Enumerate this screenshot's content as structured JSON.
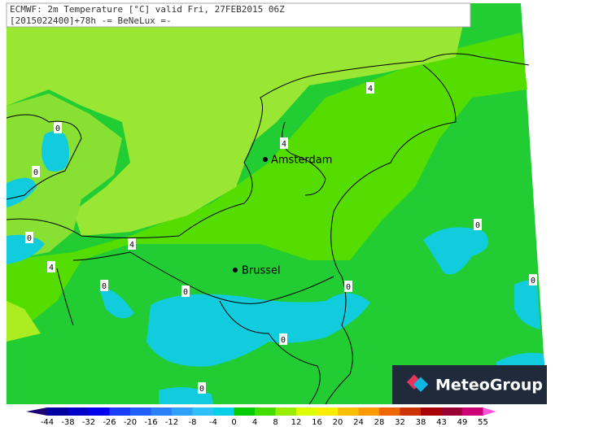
{
  "header": {
    "line1": "ECMWF: 2m Temperature [°C] valid Fri, 27FEB2015 06Z",
    "line2": "[2015022400]+78h -= BeNeLux =-"
  },
  "cities": [
    "Amsterdam",
    "Brussel"
  ],
  "contour_labels": [
    "4",
    "0",
    "4",
    "0",
    "0",
    "4",
    "4",
    "0",
    "0",
    "0",
    "0",
    "0",
    "0",
    "0"
  ],
  "logo": "MeteoGroup",
  "colorbar": {
    "labels": [
      -44,
      -38,
      -32,
      -26,
      -20,
      -16,
      -12,
      -8,
      -4,
      0,
      4,
      8,
      12,
      16,
      20,
      24,
      28,
      32,
      38,
      43,
      49,
      55
    ],
    "colors": [
      "#1a0070",
      "#0000a0",
      "#0000c8",
      "#0000f0",
      "#1a3cff",
      "#2060ff",
      "#2a80ff",
      "#30a0ff",
      "#30c0ff",
      "#00d0e8",
      "#00cc00",
      "#44dd00",
      "#99ee00",
      "#ddff00",
      "#ffee00",
      "#ffc000",
      "#ff9900",
      "#ee6600",
      "#cc3300",
      "#aa0000",
      "#990033",
      "#cc0077",
      "#ff55dd"
    ]
  }
}
